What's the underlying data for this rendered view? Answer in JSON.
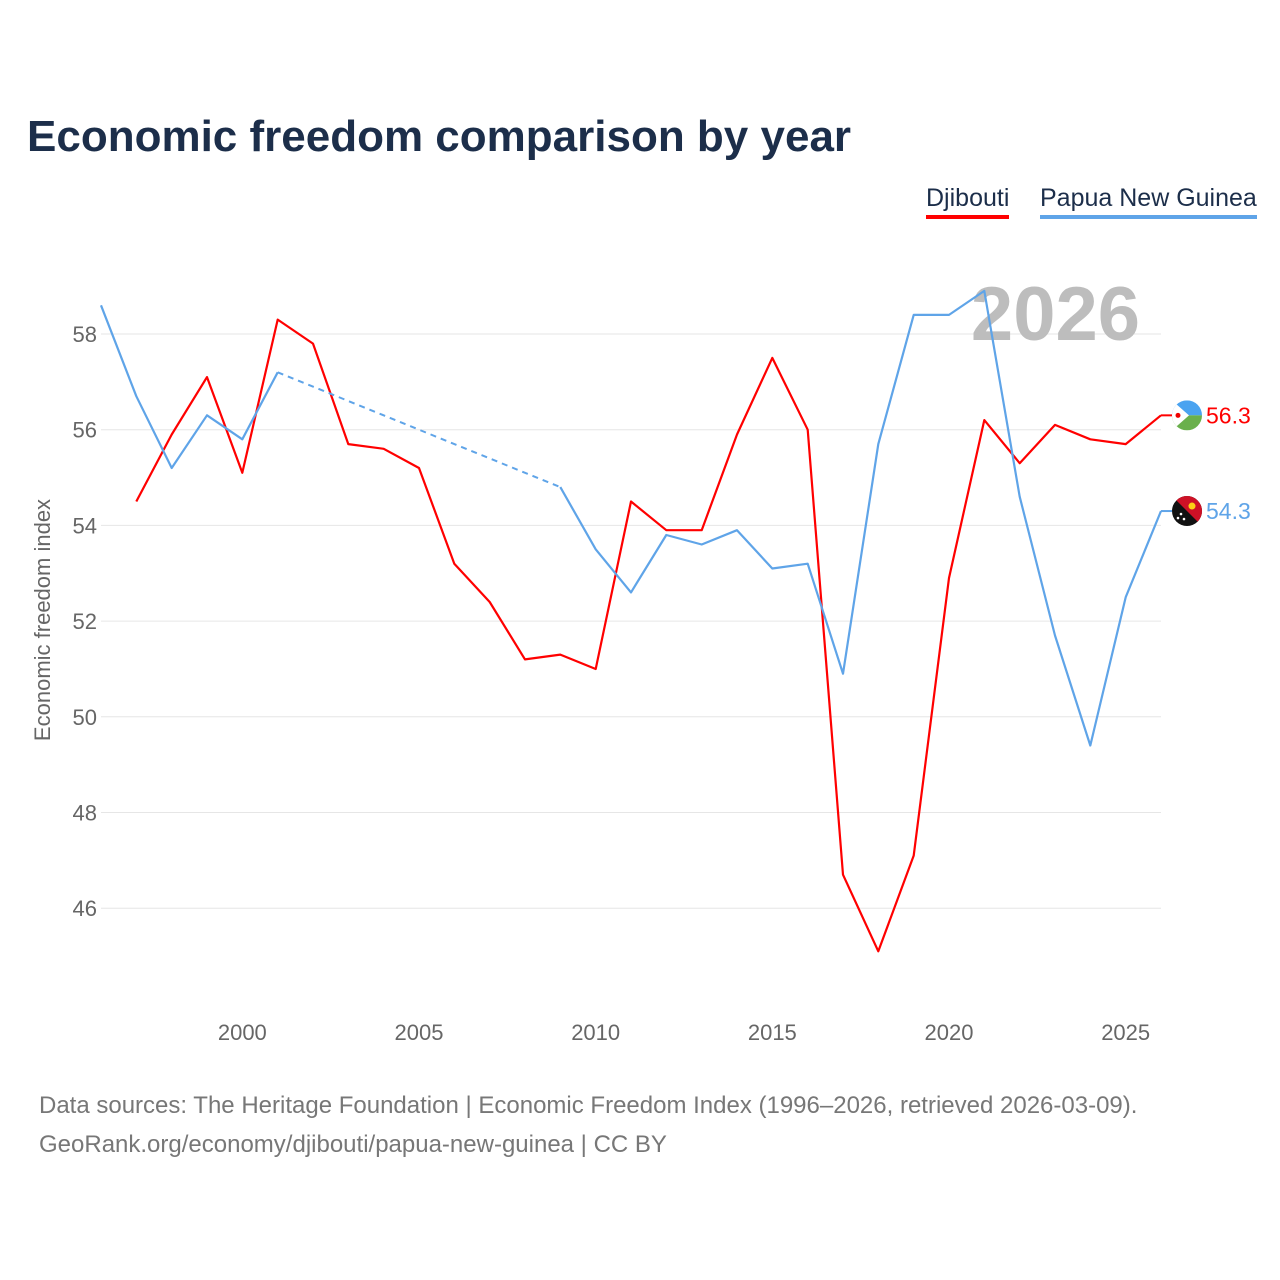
{
  "chart_data": {
    "type": "line",
    "title": "Economic freedom comparison by year",
    "xlabel": "",
    "ylabel": "Economic freedom index",
    "xlim": [
      1996,
      2026
    ],
    "ylim": [
      44.2,
      59.4
    ],
    "yticks": [
      46,
      48,
      50,
      52,
      54,
      56,
      58
    ],
    "xticks": [
      2000,
      2005,
      2010,
      2015,
      2020,
      2025
    ],
    "grid": true,
    "legend_placement": "top-right",
    "watermark_year": "2026",
    "series": [
      {
        "name": "Djibouti",
        "color": "#ff0000",
        "end_label": "56.3",
        "flag": "djibouti-flag",
        "x": [
          1997,
          1998,
          1999,
          2000,
          2001,
          2002,
          2003,
          2004,
          2005,
          2006,
          2007,
          2008,
          2009,
          2010,
          2011,
          2012,
          2013,
          2014,
          2015,
          2016,
          2017,
          2018,
          2019,
          2020,
          2021,
          2022,
          2023,
          2024,
          2025,
          2026
        ],
        "y": [
          54.5,
          55.9,
          57.1,
          55.1,
          58.3,
          57.8,
          55.7,
          55.6,
          55.2,
          53.2,
          52.4,
          51.2,
          51.3,
          51.0,
          54.5,
          53.9,
          53.9,
          55.9,
          57.5,
          56.0,
          46.7,
          45.1,
          47.1,
          52.9,
          56.2,
          55.3,
          56.1,
          55.8,
          55.7,
          56.3
        ]
      },
      {
        "name": "Papua New Guinea",
        "color": "#5fa4e8",
        "end_label": "54.3",
        "flag": "papua-new-guinea-flag",
        "x": [
          1996,
          1997,
          1998,
          1999,
          2000,
          2001,
          2002,
          2003,
          2004,
          2005,
          2006,
          2007,
          2008,
          2009,
          2010,
          2011,
          2012,
          2013,
          2014,
          2015,
          2016,
          2017,
          2018,
          2019,
          2020,
          2021,
          2022,
          2023,
          2024,
          2025,
          2026
        ],
        "y": [
          58.6,
          56.7,
          55.2,
          56.3,
          55.8,
          57.2,
          null,
          null,
          null,
          null,
          null,
          null,
          null,
          54.8,
          53.5,
          52.6,
          53.8,
          53.6,
          53.9,
          53.1,
          53.2,
          50.9,
          55.7,
          58.4,
          58.4,
          58.9,
          54.6,
          51.7,
          49.4,
          52.5,
          54.3
        ]
      }
    ]
  },
  "footer": {
    "line1": "Data sources: The Heritage Foundation | Economic Freedom Index (1996–2026, retrieved 2026-03-09).",
    "line2": "GeoRank.org/economy/djibouti/papua-new-guinea | CC BY"
  }
}
